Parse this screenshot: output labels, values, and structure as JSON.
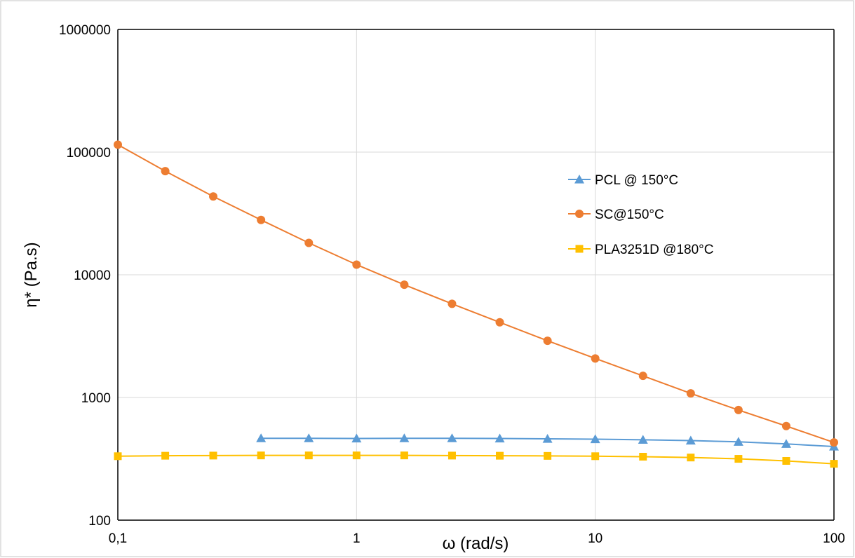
{
  "chart_data": {
    "type": "line",
    "title": "",
    "xlabel": "ω (rad/s)",
    "ylabel": "η* (Pa.s)",
    "x_scale": "log",
    "y_scale": "log",
    "xlim": [
      0.1,
      100
    ],
    "ylim": [
      100,
      1000000
    ],
    "x_ticks": [
      0.1,
      1,
      10,
      100
    ],
    "x_tick_labels": [
      "0,1",
      "1",
      "10",
      "100"
    ],
    "y_ticks": [
      100,
      1000,
      10000,
      100000,
      1000000
    ],
    "y_tick_labels": [
      "100",
      "1000",
      "10000",
      "100000",
      "1000000"
    ],
    "grid": true,
    "legend_position": "right-center",
    "series": [
      {
        "name": "PCL @ 150°C",
        "color": "#5b9bd5",
        "marker": "triangle",
        "x": [
          0.398,
          0.631,
          1,
          1.585,
          2.512,
          3.981,
          6.31,
          10,
          15.85,
          25.12,
          39.81,
          63.1,
          100
        ],
        "y": [
          465,
          465,
          463,
          465,
          465,
          463,
          460,
          457,
          452,
          445,
          435,
          418,
          398
        ]
      },
      {
        "name": "SC@150°C",
        "color": "#ed7d31",
        "marker": "circle",
        "x": [
          0.1,
          0.158,
          0.251,
          0.398,
          0.631,
          1,
          1.585,
          2.512,
          3.981,
          6.31,
          10,
          15.85,
          25.12,
          39.81,
          63.1,
          100
        ],
        "y": [
          115000,
          70000,
          43500,
          28000,
          18200,
          12100,
          8300,
          5800,
          4100,
          2900,
          2080,
          1500,
          1080,
          790,
          585,
          430
        ]
      },
      {
        "name": "PLA3251D @180°C",
        "color": "#ffc000",
        "marker": "square",
        "x": [
          0.1,
          0.158,
          0.251,
          0.398,
          0.631,
          1,
          1.585,
          2.512,
          3.981,
          6.31,
          10,
          15.85,
          25.12,
          39.81,
          63.1,
          100
        ],
        "y": [
          332,
          335,
          336,
          337,
          337,
          337,
          337,
          336,
          335,
          334,
          332,
          329,
          324,
          316,
          304,
          288
        ]
      }
    ]
  }
}
